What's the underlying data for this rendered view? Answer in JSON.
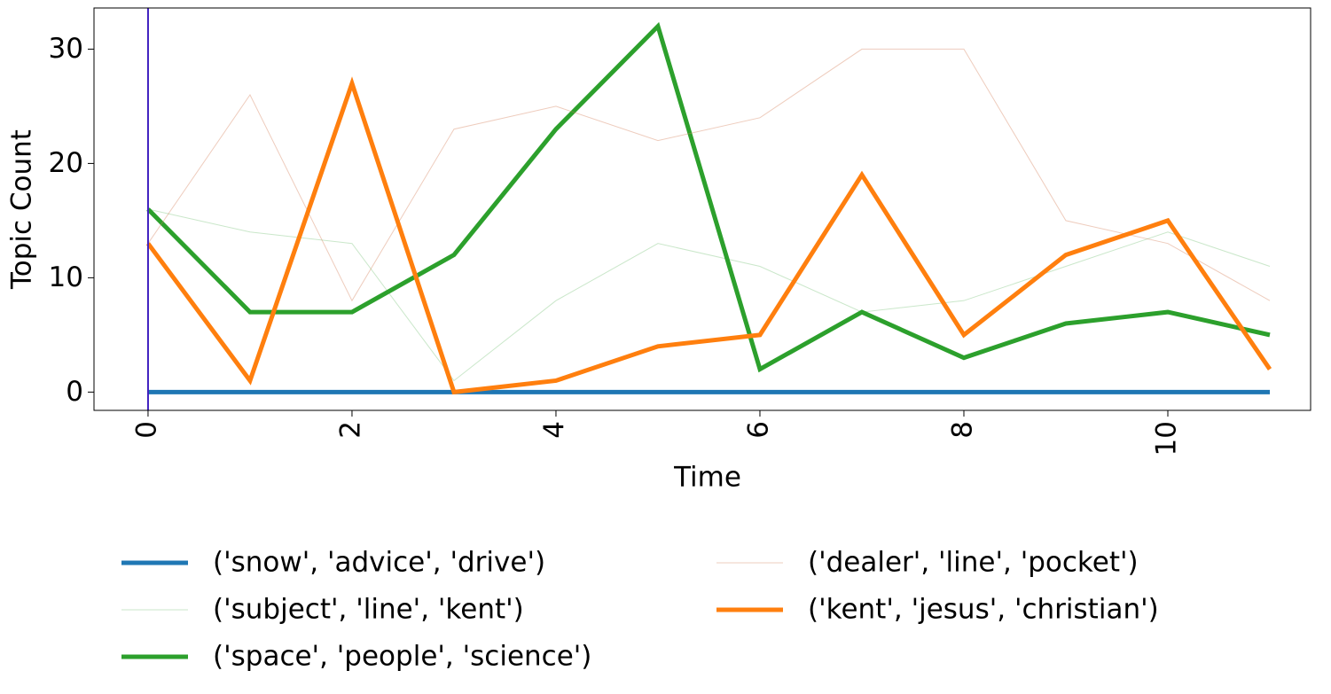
{
  "chart_data": {
    "type": "line",
    "x": [
      0,
      1,
      2,
      3,
      4,
      5,
      6,
      7,
      8,
      9,
      10,
      11
    ],
    "xlabel": "Time",
    "ylabel": "Topic Count",
    "xlim": [
      -0.53,
      11.4
    ],
    "ylim": [
      -1.6,
      33.6
    ],
    "xticks": [
      0,
      2,
      4,
      6,
      8,
      10
    ],
    "yticks": [
      0,
      10,
      20,
      30
    ],
    "vline": {
      "x": 0,
      "color": "#3f1fbf"
    },
    "legend": "bottom",
    "series": [
      {
        "name": "('snow', 'advice', 'drive')",
        "color": "#1f77b4",
        "linewidth": 5,
        "opacity": 1,
        "values": [
          0,
          0,
          0,
          0,
          0,
          0,
          0,
          0,
          0,
          0,
          0,
          0
        ]
      },
      {
        "name": "('subject', 'line', 'kent')",
        "color": "#2ca02c",
        "linewidth": 1,
        "opacity": 0.25,
        "values": [
          16,
          14,
          13,
          1,
          8,
          13,
          11,
          7,
          8,
          11,
          14,
          11
        ]
      },
      {
        "name": "('space', 'people', 'science')",
        "color": "#2ca02c",
        "linewidth": 5,
        "opacity": 1,
        "values": [
          16,
          7,
          7,
          12,
          23,
          32,
          2,
          7,
          3,
          6,
          7,
          5
        ]
      },
      {
        "name": "('dealer', 'line', 'pocket')",
        "color": "#d4805a",
        "linewidth": 1,
        "opacity": 0.4,
        "values": [
          13,
          26,
          8,
          23,
          25,
          22,
          24,
          30,
          30,
          15,
          13,
          8
        ]
      },
      {
        "name": "('kent', 'jesus', 'christian')",
        "color": "#ff7f0e",
        "linewidth": 5,
        "opacity": 1,
        "values": [
          13,
          1,
          27,
          0,
          1,
          4,
          5,
          19,
          5,
          12,
          15,
          2
        ]
      }
    ]
  }
}
